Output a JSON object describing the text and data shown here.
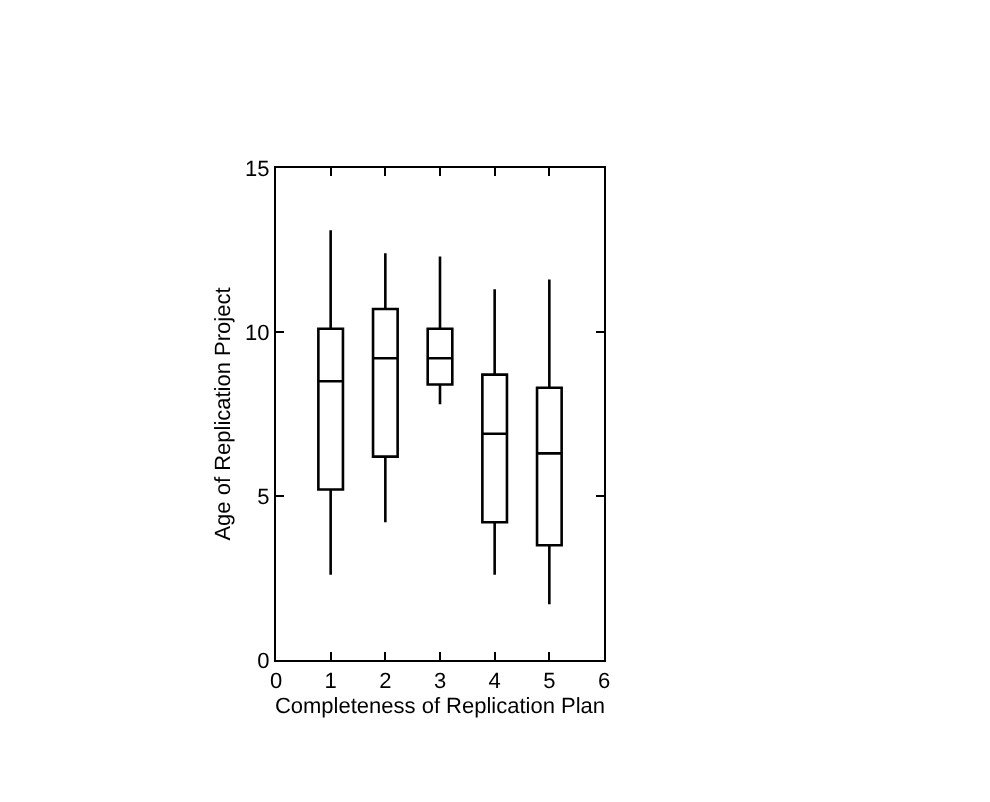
{
  "chart_data": {
    "type": "box",
    "xlabel": "Completeness of Replication Plan",
    "ylabel": "Age of Replication Project",
    "x": [
      1,
      2,
      3,
      4,
      5
    ],
    "boxes": [
      {
        "low": 2.6,
        "q1": 5.2,
        "median": 8.5,
        "q3": 10.1,
        "high": 13.1
      },
      {
        "low": 4.2,
        "q1": 6.2,
        "median": 9.2,
        "q3": 10.7,
        "high": 12.4
      },
      {
        "low": 7.8,
        "q1": 8.4,
        "median": 9.2,
        "q3": 10.1,
        "high": 12.3
      },
      {
        "low": 2.6,
        "q1": 4.2,
        "median": 6.9,
        "q3": 8.7,
        "high": 11.3
      },
      {
        "low": 1.7,
        "q1": 3.5,
        "median": 6.3,
        "q3": 8.3,
        "high": 11.6
      }
    ],
    "color": "#000000",
    "xlim": [
      0,
      6
    ],
    "xticks": [
      0,
      1,
      2,
      3,
      4,
      5,
      6
    ],
    "ylim": [
      0,
      15
    ],
    "yticks": [
      0,
      5,
      10,
      15
    ],
    "legend": false
  }
}
